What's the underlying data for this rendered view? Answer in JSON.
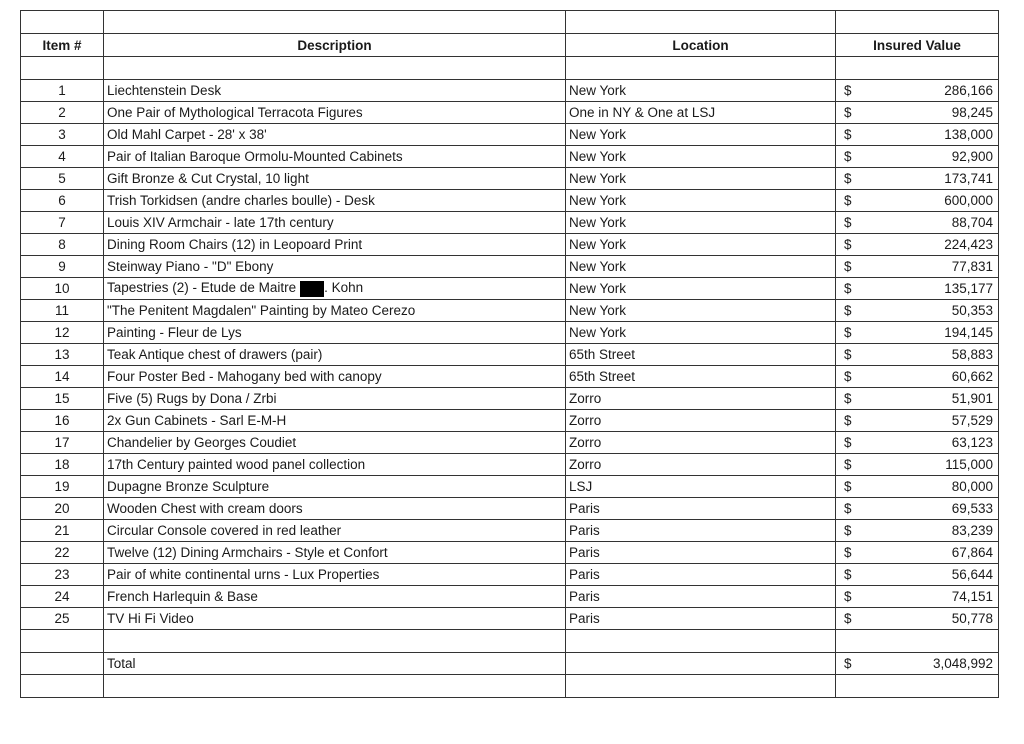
{
  "headers": {
    "item": "Item #",
    "description": "Description",
    "location": "Location",
    "value": "Insured Value"
  },
  "currency": "$",
  "rows": [
    {
      "item": "1",
      "description": "Liechtenstein Desk",
      "location": "New York",
      "value": "286,166"
    },
    {
      "item": "2",
      "description": "One Pair of Mythological Terracota Figures",
      "location": "One in NY & One at LSJ",
      "value": "98,245"
    },
    {
      "item": "3",
      "description": "Old Mahl Carpet - 28' x 38'",
      "location": "New York",
      "value": "138,000"
    },
    {
      "item": "4",
      "description": "Pair of Italian Baroque Ormolu-Mounted Cabinets",
      "location": "New York",
      "value": "92,900"
    },
    {
      "item": "5",
      "description": "Gift Bronze & Cut Crystal, 10 light",
      "location": "New York",
      "value": "173,741"
    },
    {
      "item": "6",
      "description": "Trish Torkidsen (andre charles boulle) - Desk",
      "location": "New York",
      "value": "600,000"
    },
    {
      "item": "7",
      "description": "Louis XIV Armchair - late 17th century",
      "location": "New York",
      "value": "88,704"
    },
    {
      "item": "8",
      "description": "Dining Room Chairs (12) in Leopoard Print",
      "location": "New York",
      "value": "224,423"
    },
    {
      "item": "9",
      "description": "Steinway Piano - \"D\" Ebony",
      "location": "New York",
      "value": "77,831"
    },
    {
      "item": "10",
      "description": "Tapestries (2) - Etude de Maitre",
      "description_after_redaction": ". Kohn",
      "location": "New York",
      "value": "135,177"
    },
    {
      "item": "11",
      "description": "\"The Penitent Magdalen\" Painting by Mateo Cerezo",
      "location": "New York",
      "value": "50,353"
    },
    {
      "item": "12",
      "description": "Painting - Fleur de Lys",
      "location": "New York",
      "value": "194,145"
    },
    {
      "item": "13",
      "description": "Teak Antique chest of drawers (pair)",
      "location": "65th Street",
      "value": "58,883"
    },
    {
      "item": "14",
      "description": "Four Poster Bed - Mahogany bed with canopy",
      "location": "65th Street",
      "value": "60,662"
    },
    {
      "item": "15",
      "description": "Five (5) Rugs by Dona / Zrbi",
      "location": "Zorro",
      "value": "51,901"
    },
    {
      "item": "16",
      "description": "2x Gun Cabinets - Sarl E-M-H",
      "location": "Zorro",
      "value": "57,529"
    },
    {
      "item": "17",
      "description": "Chandelier by Georges Coudiet",
      "location": "Zorro",
      "value": "63,123"
    },
    {
      "item": "18",
      "description": "17th Century painted wood panel collection",
      "location": "Zorro",
      "value": "115,000"
    },
    {
      "item": "19",
      "description": "Dupagne Bronze Sculpture",
      "location": "LSJ",
      "value": "80,000"
    },
    {
      "item": "20",
      "description": "Wooden Chest with cream doors",
      "location": "Paris",
      "value": "69,533"
    },
    {
      "item": "21",
      "description": "Circular Console covered in red leather",
      "location": "Paris",
      "value": "83,239"
    },
    {
      "item": "22",
      "description": "Twelve (12) Dining Armchairs - Style et Confort",
      "location": "Paris",
      "value": "67,864"
    },
    {
      "item": "23",
      "description": "Pair of white continental urns - Lux Properties",
      "location": "Paris",
      "value": "56,644"
    },
    {
      "item": "24",
      "description": "French Harlequin & Base",
      "location": "Paris",
      "value": "74,151"
    },
    {
      "item": "25",
      "description": "TV Hi Fi Video",
      "location": "Paris",
      "value": "50,778"
    }
  ],
  "total": {
    "label": "Total",
    "value": "3,048,992"
  }
}
